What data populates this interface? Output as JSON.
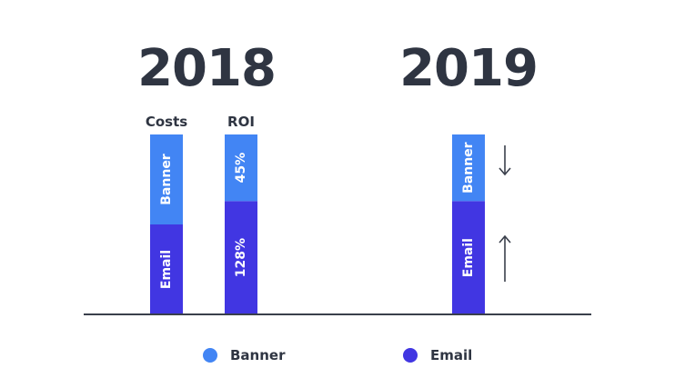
{
  "chart_data": {
    "type": "bar",
    "stacked": true,
    "groups": [
      {
        "year": "2018",
        "columns": [
          {
            "label": "Costs",
            "segments": [
              {
                "series": "Email",
                "value": 50,
                "label": "Email"
              },
              {
                "series": "Banner",
                "value": 50,
                "label": "Banner"
              }
            ]
          },
          {
            "label": "ROI",
            "segments": [
              {
                "series": "Email",
                "value": 63,
                "label": "128%"
              },
              {
                "series": "Banner",
                "value": 37,
                "label": "45%"
              }
            ]
          }
        ]
      },
      {
        "year": "2019",
        "columns": [
          {
            "label": "",
            "segments": [
              {
                "series": "Email",
                "value": 63,
                "label": "Email"
              },
              {
                "series": "Banner",
                "value": 37,
                "label": "Banner"
              }
            ]
          }
        ],
        "trends": {
          "Banner": "down",
          "Email": "up"
        }
      }
    ],
    "legend": [
      {
        "name": "Banner",
        "color": "#4285f4"
      },
      {
        "name": "Email",
        "color": "#4136e2"
      }
    ],
    "legend_position": "bottom",
    "colors": {
      "Banner": "#4285f4",
      "Email": "#4136e2",
      "axis": "#3a3f4b",
      "text": "#2f3542"
    }
  }
}
